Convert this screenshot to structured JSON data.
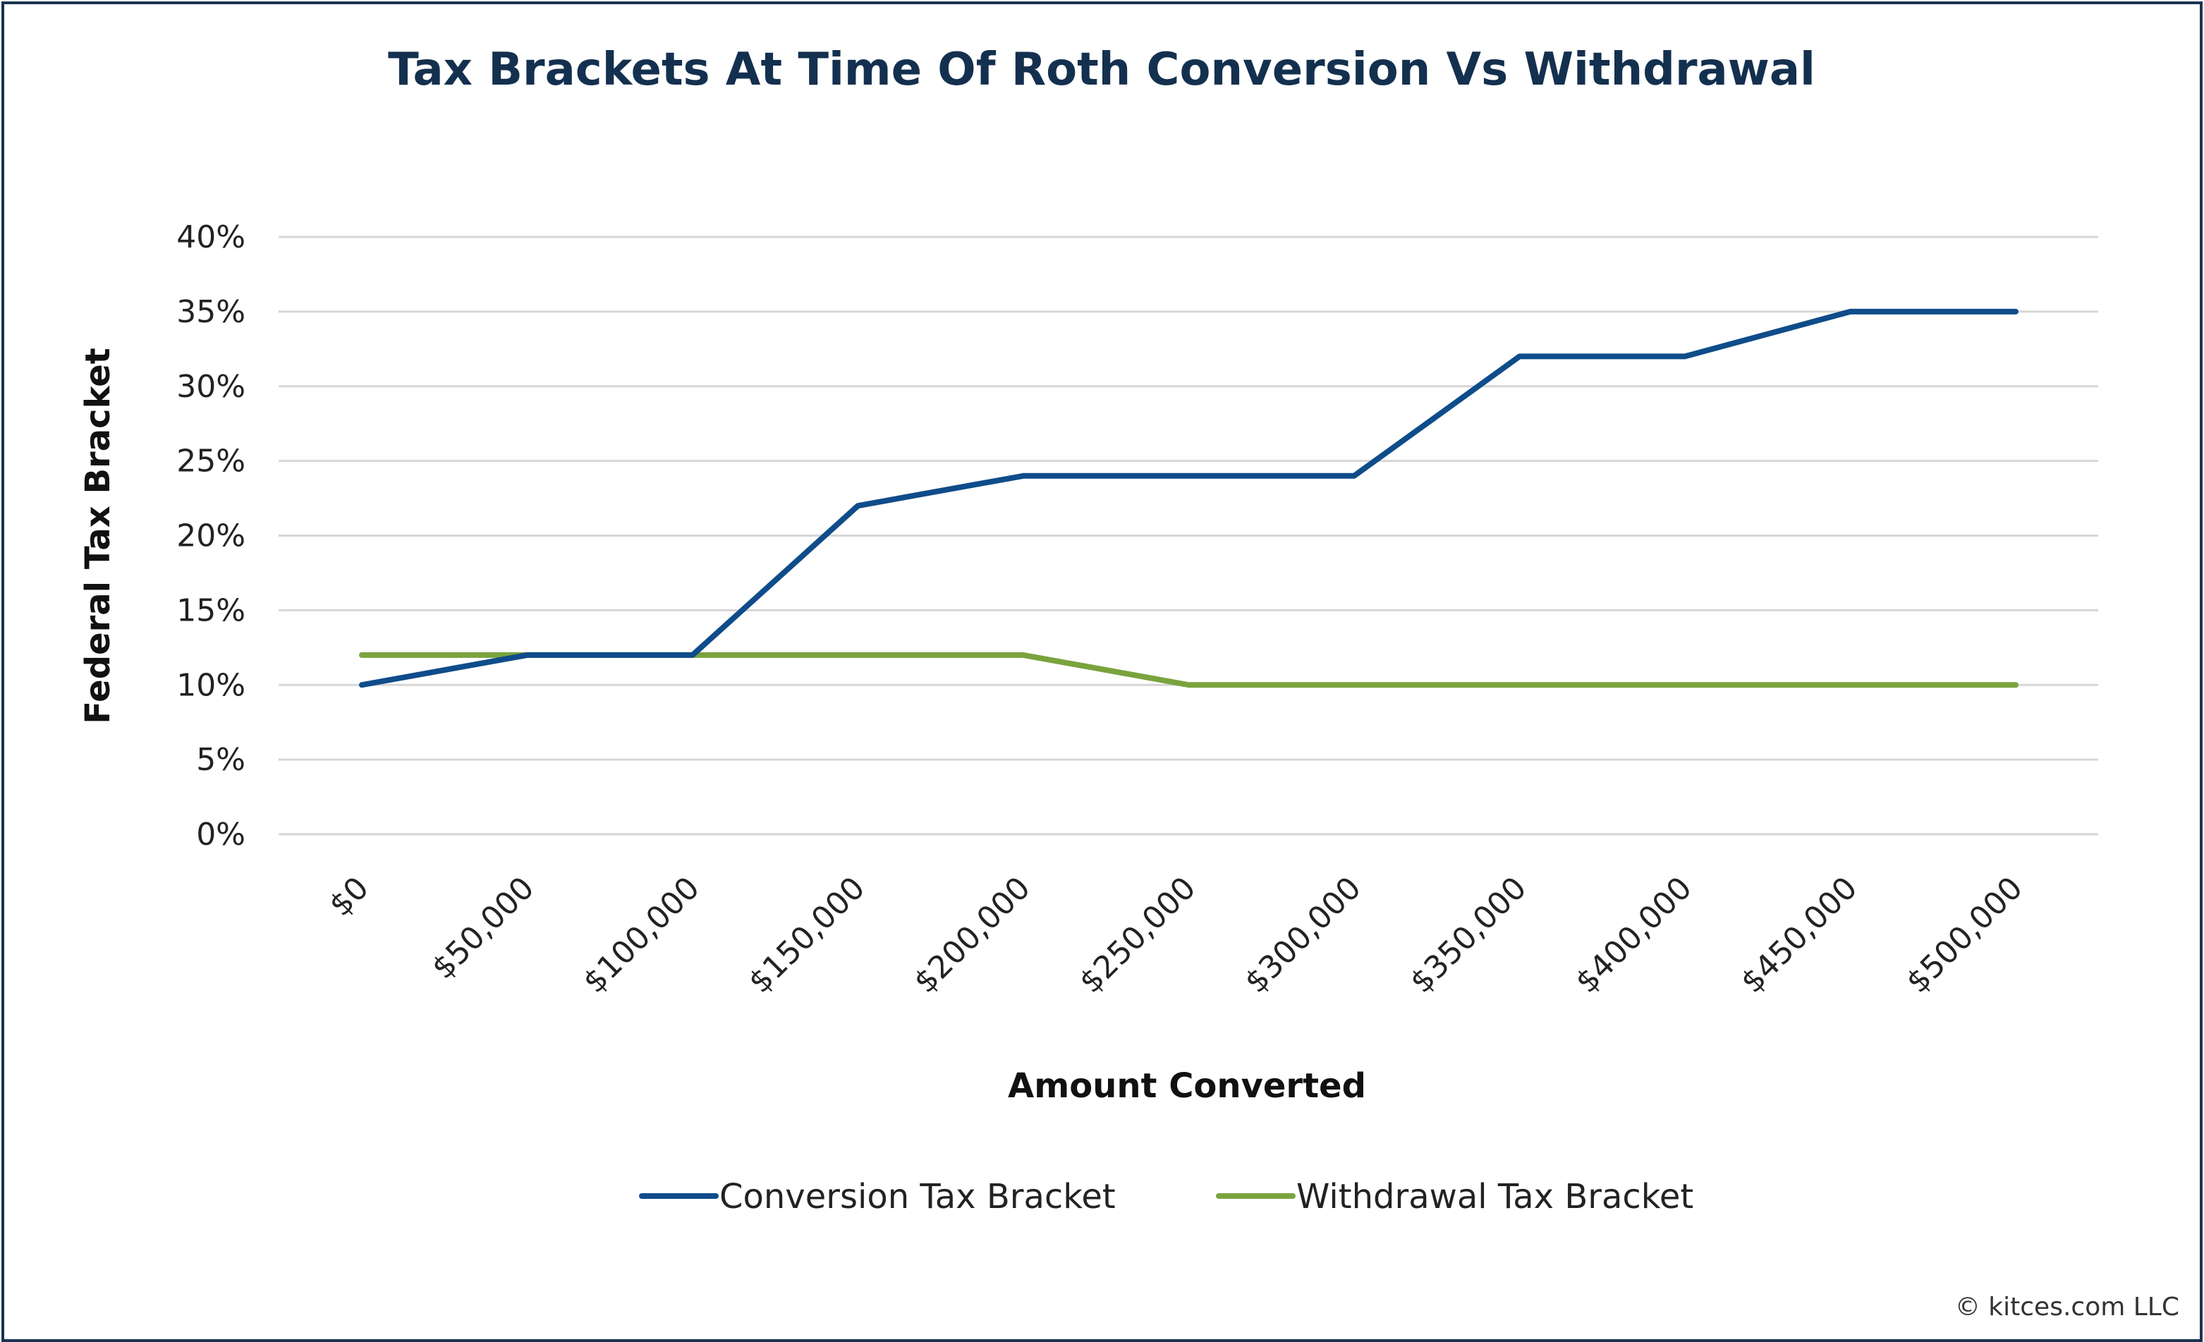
{
  "chart_data": {
    "type": "line",
    "title": "Tax Brackets At Time Of Roth Conversion Vs Withdrawal",
    "xlabel": "Amount Converted",
    "ylabel": "Federal Tax Bracket",
    "categories": [
      "$0",
      "$50,000",
      "$100,000",
      "$150,000",
      "$200,000",
      "$250,000",
      "$300,000",
      "$350,000",
      "$400,000",
      "$450,000",
      "$500,000"
    ],
    "y_ticks": [
      "0%",
      "5%",
      "10%",
      "15%",
      "20%",
      "25%",
      "30%",
      "35%",
      "40%"
    ],
    "ylim": [
      0,
      40
    ],
    "y_unit": "%",
    "grid": true,
    "legend_position": "bottom-center",
    "series": [
      {
        "name": "Conversion Tax Bracket",
        "color": "#0f4c8a",
        "values": [
          10,
          12,
          12,
          22,
          24,
          24,
          24,
          32,
          32,
          35,
          35
        ]
      },
      {
        "name": "Withdrawal Tax Bracket",
        "color": "#7aa33e",
        "values": [
          12,
          12,
          12,
          12,
          12,
          10,
          10,
          10,
          10,
          10,
          10
        ]
      }
    ]
  },
  "footer": {
    "copyright": "© kitces.com LLC"
  }
}
